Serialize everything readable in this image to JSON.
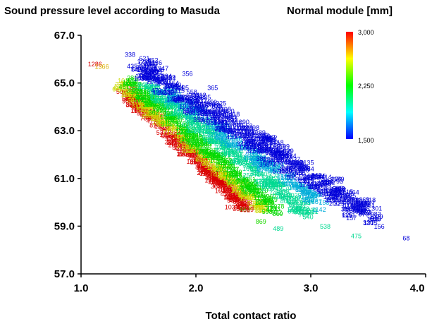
{
  "chart_data": {
    "type": "scatter",
    "title": "Sound pressure level according to Masuda",
    "xlabel": "Total contact ratio",
    "ylabel": "",
    "xlim": [
      1.0,
      4.0
    ],
    "ylim": [
      57.0,
      67.0
    ],
    "xticks": [
      "1.0",
      "2.0",
      "3.0",
      "4.0"
    ],
    "yticks": [
      "67.0",
      "65.0",
      "63.0",
      "61.0",
      "59.0",
      "57.0"
    ],
    "grid": false,
    "legend": "top-right",
    "colorbar": {
      "title": "Normal module [mm]",
      "min": 1.5,
      "max": 3.0,
      "ticks": [
        "3,000",
        "2,250",
        "1,500"
      ],
      "colors": [
        "#ff0000",
        "#ffff00",
        "#00ff00",
        "#00ffff",
        "#0000ff"
      ]
    },
    "labeled_points": [
      {
        "x": 1.06,
        "y": 65.7,
        "label": "1286",
        "module": 3.0
      },
      {
        "x": 1.12,
        "y": 65.6,
        "label": "1366",
        "module": 2.7
      },
      {
        "x": 1.38,
        "y": 66.1,
        "label": "338",
        "module": 1.5
      },
      {
        "x": 1.58,
        "y": 65.7,
        "label": "341",
        "module": 1.5
      },
      {
        "x": 1.88,
        "y": 65.3,
        "label": "356",
        "module": 1.5
      },
      {
        "x": 2.1,
        "y": 64.7,
        "label": "365",
        "module": 1.5
      },
      {
        "x": 2.55,
        "y": 61.5,
        "label": "398",
        "module": 1.5
      },
      {
        "x": 3.8,
        "y": 58.4,
        "label": "68",
        "module": 1.5
      },
      {
        "x": 3.55,
        "y": 58.9,
        "label": "156",
        "module": 1.5
      },
      {
        "x": 3.43,
        "y": 59.5,
        "label": "253",
        "module": 1.5
      },
      {
        "x": 3.15,
        "y": 60.1,
        "label": "132",
        "module": 1.5
      },
      {
        "x": 2.98,
        "y": 60.6,
        "label": "112",
        "module": 1.5
      },
      {
        "x": 2.76,
        "y": 61.1,
        "label": "110",
        "module": 1.6
      },
      {
        "x": 2.67,
        "y": 58.8,
        "label": "489",
        "module": 2.0
      },
      {
        "x": 2.93,
        "y": 59.3,
        "label": "540",
        "module": 2.0
      },
      {
        "x": 3.08,
        "y": 58.9,
        "label": "538",
        "module": 2.0
      },
      {
        "x": 3.35,
        "y": 58.5,
        "label": "475",
        "module": 2.0
      },
      {
        "x": 2.38,
        "y": 59.6,
        "label": "889",
        "module": 2.3
      },
      {
        "x": 2.52,
        "y": 59.1,
        "label": "869",
        "module": 2.3
      },
      {
        "x": 2.25,
        "y": 59.7,
        "label": "1037",
        "module": 3.0
      },
      {
        "x": 2.38,
        "y": 59.6,
        "label": "1069",
        "module": 3.0
      }
    ],
    "bands": [
      {
        "module": 3.0,
        "x0": 1.33,
        "y0": 64.6,
        "x1": 2.4,
        "y1": 59.6,
        "xw": 0.07,
        "yw": 0.45,
        "n": 220
      },
      {
        "module": 2.6,
        "x0": 1.28,
        "y0": 64.9,
        "x1": 2.55,
        "y1": 59.6,
        "xw": 0.07,
        "yw": 0.45,
        "n": 170
      },
      {
        "module": 2.25,
        "x0": 1.35,
        "y0": 65.0,
        "x1": 2.65,
        "y1": 59.6,
        "xw": 0.09,
        "yw": 0.5,
        "n": 200
      },
      {
        "module": 2.0,
        "x0": 1.5,
        "y0": 64.9,
        "x1": 2.95,
        "y1": 59.4,
        "xw": 0.1,
        "yw": 0.55,
        "n": 220
      },
      {
        "module": 1.8,
        "x0": 1.62,
        "y0": 64.8,
        "x1": 3.05,
        "y1": 59.8,
        "xw": 0.1,
        "yw": 0.55,
        "n": 160
      },
      {
        "module": 1.5,
        "x0": 1.45,
        "y0": 65.6,
        "x1": 3.5,
        "y1": 59.3,
        "xw": 0.16,
        "yw": 0.85,
        "n": 420
      }
    ]
  }
}
